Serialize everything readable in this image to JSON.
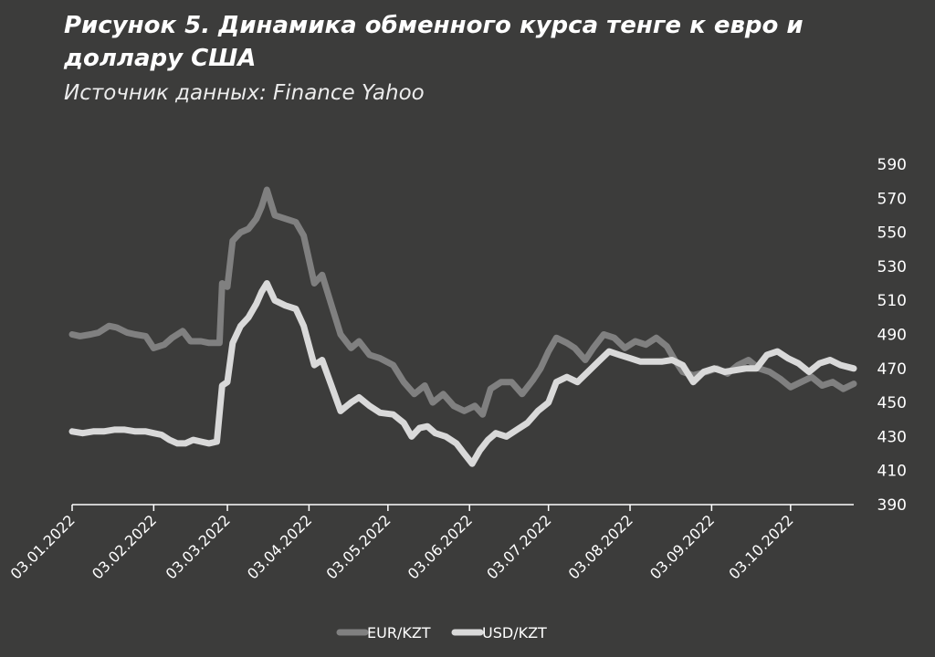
{
  "header": {
    "title": "Рисунок 5. Динамика обменного курса тенге к евро и доллару США",
    "subtitle": "Источник данных: Finance Yahoo"
  },
  "chart_data": {
    "type": "line",
    "ylim": [
      390,
      590
    ],
    "yticks": [
      390,
      410,
      430,
      450,
      470,
      490,
      510,
      530,
      550,
      570,
      590
    ],
    "xlim": [
      "2022-01-03",
      "2022-10-27"
    ],
    "xticks": [
      "2022-01-03",
      "2022-02-03",
      "2022-03-03",
      "2022-04-03",
      "2022-05-03",
      "2022-06-03",
      "2022-07-03",
      "2022-08-03",
      "2022-09-03",
      "2022-10-03"
    ],
    "xtick_labels": [
      "03.01.2022",
      "03.02.2022",
      "03.03.2022",
      "03.04.2022",
      "03.05.2022",
      "03.06.2022",
      "03.07.2022",
      "03.08.2022",
      "03.09.2022",
      "03.10.2022"
    ],
    "y_axis_position": "right",
    "legend_position": "bottom",
    "grid": false,
    "series": [
      {
        "name": "EUR/KZT",
        "color": "#808080",
        "points": [
          [
            "2022-01-03",
            490
          ],
          [
            "2022-01-06",
            489
          ],
          [
            "2022-01-10",
            490
          ],
          [
            "2022-01-13",
            491
          ],
          [
            "2022-01-17",
            495
          ],
          [
            "2022-01-20",
            494
          ],
          [
            "2022-01-24",
            491
          ],
          [
            "2022-01-27",
            490
          ],
          [
            "2022-01-31",
            489
          ],
          [
            "2022-02-03",
            482
          ],
          [
            "2022-02-07",
            484
          ],
          [
            "2022-02-10",
            488
          ],
          [
            "2022-02-14",
            492
          ],
          [
            "2022-02-17",
            486
          ],
          [
            "2022-02-21",
            486
          ],
          [
            "2022-02-24",
            485
          ],
          [
            "2022-02-28",
            485
          ],
          [
            "2022-03-01",
            520
          ],
          [
            "2022-03-03",
            518
          ],
          [
            "2022-03-05",
            545
          ],
          [
            "2022-03-08",
            550
          ],
          [
            "2022-03-11",
            552
          ],
          [
            "2022-03-14",
            558
          ],
          [
            "2022-03-16",
            565
          ],
          [
            "2022-03-18",
            575
          ],
          [
            "2022-03-21",
            560
          ],
          [
            "2022-03-25",
            558
          ],
          [
            "2022-03-29",
            556
          ],
          [
            "2022-04-01",
            548
          ],
          [
            "2022-04-05",
            520
          ],
          [
            "2022-04-08",
            525
          ],
          [
            "2022-04-12",
            505
          ],
          [
            "2022-04-15",
            490
          ],
          [
            "2022-04-19",
            482
          ],
          [
            "2022-04-22",
            486
          ],
          [
            "2022-04-26",
            478
          ],
          [
            "2022-04-30",
            476
          ],
          [
            "2022-05-05",
            472
          ],
          [
            "2022-05-09",
            462
          ],
          [
            "2022-05-13",
            455
          ],
          [
            "2022-05-17",
            460
          ],
          [
            "2022-05-20",
            450
          ],
          [
            "2022-05-24",
            455
          ],
          [
            "2022-05-28",
            448
          ],
          [
            "2022-06-01",
            445
          ],
          [
            "2022-06-05",
            448
          ],
          [
            "2022-06-08",
            443
          ],
          [
            "2022-06-11",
            458
          ],
          [
            "2022-06-15",
            462
          ],
          [
            "2022-06-19",
            462
          ],
          [
            "2022-06-23",
            455
          ],
          [
            "2022-06-27",
            463
          ],
          [
            "2022-06-30",
            470
          ],
          [
            "2022-07-03",
            480
          ],
          [
            "2022-07-06",
            488
          ],
          [
            "2022-07-10",
            485
          ],
          [
            "2022-07-13",
            482
          ],
          [
            "2022-07-17",
            475
          ],
          [
            "2022-07-20",
            482
          ],
          [
            "2022-07-24",
            490
          ],
          [
            "2022-07-28",
            488
          ],
          [
            "2022-08-01",
            482
          ],
          [
            "2022-08-05",
            486
          ],
          [
            "2022-08-09",
            484
          ],
          [
            "2022-08-13",
            488
          ],
          [
            "2022-08-17",
            483
          ],
          [
            "2022-08-20",
            475
          ],
          [
            "2022-08-23",
            468
          ],
          [
            "2022-08-27",
            466
          ],
          [
            "2022-09-01",
            468
          ],
          [
            "2022-09-05",
            470
          ],
          [
            "2022-09-09",
            467
          ],
          [
            "2022-09-13",
            472
          ],
          [
            "2022-09-17",
            475
          ],
          [
            "2022-09-21",
            470
          ],
          [
            "2022-09-25",
            468
          ],
          [
            "2022-09-29",
            464
          ],
          [
            "2022-10-03",
            459
          ],
          [
            "2022-10-07",
            462
          ],
          [
            "2022-10-11",
            465
          ],
          [
            "2022-10-15",
            460
          ],
          [
            "2022-10-19",
            462
          ],
          [
            "2022-10-23",
            458
          ],
          [
            "2022-10-27",
            461
          ]
        ]
      },
      {
        "name": "USD/KZT",
        "color": "#d9d9d9",
        "points": [
          [
            "2022-01-03",
            433
          ],
          [
            "2022-01-07",
            432
          ],
          [
            "2022-01-11",
            433
          ],
          [
            "2022-01-15",
            433
          ],
          [
            "2022-01-19",
            434
          ],
          [
            "2022-01-23",
            434
          ],
          [
            "2022-01-27",
            433
          ],
          [
            "2022-01-31",
            433
          ],
          [
            "2022-02-03",
            432
          ],
          [
            "2022-02-06",
            431
          ],
          [
            "2022-02-09",
            428
          ],
          [
            "2022-02-12",
            426
          ],
          [
            "2022-02-15",
            426
          ],
          [
            "2022-02-18",
            428
          ],
          [
            "2022-02-21",
            427
          ],
          [
            "2022-02-24",
            426
          ],
          [
            "2022-02-27",
            427
          ],
          [
            "2022-03-01",
            460
          ],
          [
            "2022-03-03",
            462
          ],
          [
            "2022-03-05",
            485
          ],
          [
            "2022-03-08",
            495
          ],
          [
            "2022-03-11",
            500
          ],
          [
            "2022-03-14",
            508
          ],
          [
            "2022-03-16",
            515
          ],
          [
            "2022-03-18",
            520
          ],
          [
            "2022-03-21",
            510
          ],
          [
            "2022-03-25",
            507
          ],
          [
            "2022-03-29",
            505
          ],
          [
            "2022-04-01",
            495
          ],
          [
            "2022-04-05",
            472
          ],
          [
            "2022-04-08",
            475
          ],
          [
            "2022-04-12",
            458
          ],
          [
            "2022-04-15",
            445
          ],
          [
            "2022-04-19",
            450
          ],
          [
            "2022-04-22",
            453
          ],
          [
            "2022-04-26",
            448
          ],
          [
            "2022-04-30",
            444
          ],
          [
            "2022-05-05",
            443
          ],
          [
            "2022-05-09",
            438
          ],
          [
            "2022-05-12",
            430
          ],
          [
            "2022-05-15",
            435
          ],
          [
            "2022-05-18",
            436
          ],
          [
            "2022-05-21",
            432
          ],
          [
            "2022-05-25",
            430
          ],
          [
            "2022-05-29",
            426
          ],
          [
            "2022-06-01",
            420
          ],
          [
            "2022-06-04",
            414
          ],
          [
            "2022-06-07",
            422
          ],
          [
            "2022-06-10",
            428
          ],
          [
            "2022-06-13",
            432
          ],
          [
            "2022-06-17",
            430
          ],
          [
            "2022-06-21",
            434
          ],
          [
            "2022-06-25",
            438
          ],
          [
            "2022-06-29",
            445
          ],
          [
            "2022-07-03",
            450
          ],
          [
            "2022-07-06",
            462
          ],
          [
            "2022-07-10",
            465
          ],
          [
            "2022-07-14",
            462
          ],
          [
            "2022-07-18",
            468
          ],
          [
            "2022-07-22",
            474
          ],
          [
            "2022-07-26",
            480
          ],
          [
            "2022-07-30",
            478
          ],
          [
            "2022-08-03",
            476
          ],
          [
            "2022-08-07",
            474
          ],
          [
            "2022-08-11",
            474
          ],
          [
            "2022-08-15",
            474
          ],
          [
            "2022-08-19",
            475
          ],
          [
            "2022-08-23",
            472
          ],
          [
            "2022-08-27",
            462
          ],
          [
            "2022-08-31",
            468
          ],
          [
            "2022-09-04",
            470
          ],
          [
            "2022-09-08",
            468
          ],
          [
            "2022-09-12",
            469
          ],
          [
            "2022-09-16",
            470
          ],
          [
            "2022-09-20",
            470
          ],
          [
            "2022-09-24",
            478
          ],
          [
            "2022-09-28",
            480
          ],
          [
            "2022-10-02",
            476
          ],
          [
            "2022-10-06",
            473
          ],
          [
            "2022-10-10",
            468
          ],
          [
            "2022-10-14",
            473
          ],
          [
            "2022-10-18",
            475
          ],
          [
            "2022-10-22",
            472
          ],
          [
            "2022-10-27",
            470
          ]
        ]
      }
    ]
  }
}
